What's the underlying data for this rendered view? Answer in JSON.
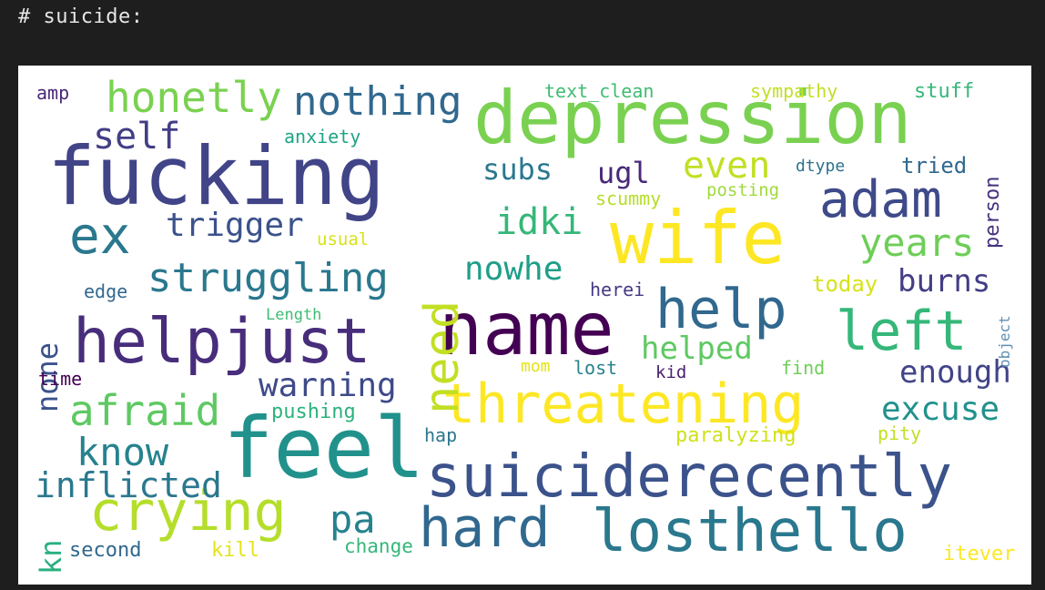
{
  "cell": {
    "header": "# suicide:"
  },
  "wordcloud": {
    "words": [
      {
        "text": "depression",
        "color": "#7ad151"
      },
      {
        "text": "fucking",
        "color": "#414487"
      },
      {
        "text": "wife",
        "color": "#fde725"
      },
      {
        "text": "name",
        "color": "#440154"
      },
      {
        "text": "helpjust",
        "color": "#472d7b"
      },
      {
        "text": "feel",
        "color": "#21918c"
      },
      {
        "text": "suiciderecently",
        "color": "#3b528b"
      },
      {
        "text": "losthello",
        "color": "#2a788e"
      },
      {
        "text": "threatening",
        "color": "#fde725"
      },
      {
        "text": "crying",
        "color": "#b5de2b"
      },
      {
        "text": "hard",
        "color": "#31688e"
      },
      {
        "text": "help",
        "color": "#31688e"
      },
      {
        "text": "left",
        "color": "#35b779"
      },
      {
        "text": "adam",
        "color": "#3e4a89"
      },
      {
        "text": "need",
        "color": "#c2df23"
      },
      {
        "text": "honetly",
        "color": "#7ad151"
      },
      {
        "text": "nothing",
        "color": "#31688e"
      },
      {
        "text": "ex",
        "color": "#2a788e"
      },
      {
        "text": "struggling",
        "color": "#2a788e"
      },
      {
        "text": "afraid",
        "color": "#5ec962"
      },
      {
        "text": "know",
        "color": "#26828e"
      },
      {
        "text": "inflicted",
        "color": "#2a788e"
      },
      {
        "text": "pa",
        "color": "#26828e"
      },
      {
        "text": "years",
        "color": "#6ece58"
      },
      {
        "text": "idki",
        "color": "#35b779"
      },
      {
        "text": "nowhe",
        "color": "#1f9e89"
      },
      {
        "text": "helped",
        "color": "#5ec962"
      },
      {
        "text": "even",
        "color": "#c2df23"
      },
      {
        "text": "self",
        "color": "#433e85"
      },
      {
        "text": "trigger",
        "color": "#3b528b"
      },
      {
        "text": "subs",
        "color": "#2a788e"
      },
      {
        "text": "ugl",
        "color": "#482878"
      },
      {
        "text": "warning",
        "color": "#3e4a89"
      },
      {
        "text": "burns",
        "color": "#433e85"
      },
      {
        "text": "enough",
        "color": "#414487"
      },
      {
        "text": "excuse",
        "color": "#21918c"
      },
      {
        "text": "none",
        "color": "#3b528b"
      },
      {
        "text": "kn",
        "color": "#29af7f"
      },
      {
        "text": "anxiety",
        "color": "#20a486"
      },
      {
        "text": "text_clean",
        "color": "#3fbc73"
      },
      {
        "text": "sympathy",
        "color": "#c2df23"
      },
      {
        "text": "stuff",
        "color": "#35b779"
      },
      {
        "text": "person",
        "color": "#46327e"
      },
      {
        "text": "amp",
        "color": "#482878"
      },
      {
        "text": "tried",
        "color": "#31688e"
      },
      {
        "text": "dtype",
        "color": "#2c728e"
      },
      {
        "text": "posting",
        "color": "#9fda3a"
      },
      {
        "text": "scummy",
        "color": "#b5de2b"
      },
      {
        "text": "usual",
        "color": "#d8e219"
      },
      {
        "text": "edge",
        "color": "#31688e"
      },
      {
        "text": "Length",
        "color": "#3fbc73"
      },
      {
        "text": "herei",
        "color": "#443a83"
      },
      {
        "text": "today",
        "color": "#d8e219"
      },
      {
        "text": "object",
        "color": "#5e8fb5"
      },
      {
        "text": "time",
        "color": "#440154"
      },
      {
        "text": "mom",
        "color": "#e5e419"
      },
      {
        "text": "lost",
        "color": "#26828e"
      },
      {
        "text": "kid",
        "color": "#481f70"
      },
      {
        "text": "find",
        "color": "#6ece58"
      },
      {
        "text": "pushing",
        "color": "#2db27d"
      },
      {
        "text": "hap",
        "color": "#2a788e"
      },
      {
        "text": "paralyzing",
        "color": "#d0e11c"
      },
      {
        "text": "pity",
        "color": "#c2df23"
      },
      {
        "text": "second",
        "color": "#31688e"
      },
      {
        "text": "kill",
        "color": "#e5e419"
      },
      {
        "text": "change",
        "color": "#35b779"
      },
      {
        "text": "itever",
        "color": "#fde725"
      }
    ]
  }
}
